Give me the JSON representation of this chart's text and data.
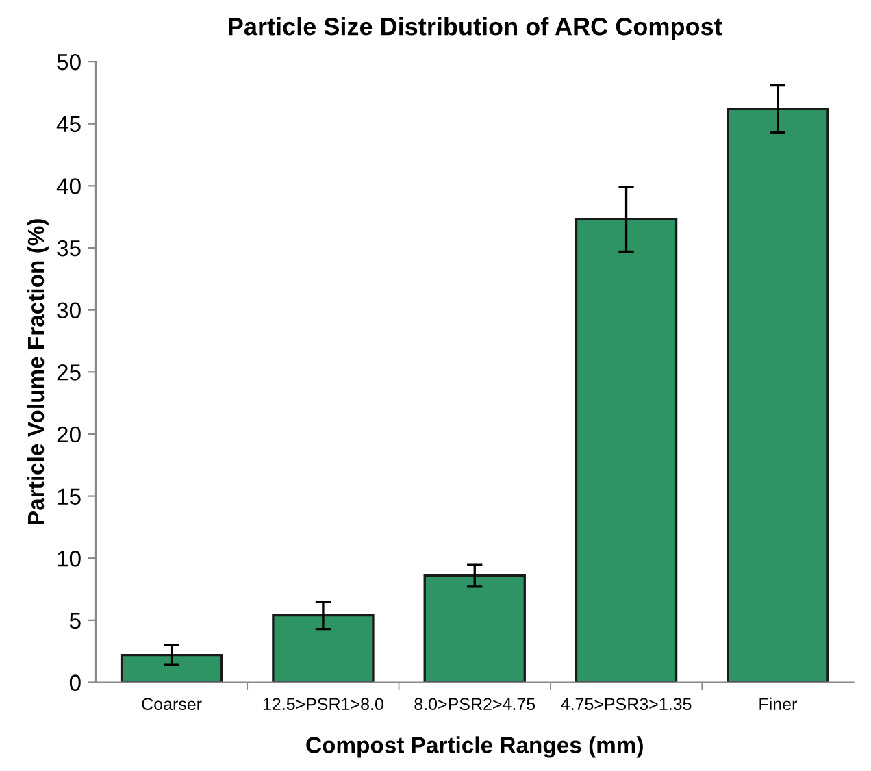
{
  "chart_data": {
    "type": "bar",
    "title": "Particle Size Distribution of ARC Compost",
    "xlabel": "Compost Particle Ranges (mm)",
    "ylabel": "Particle Volume Fraction (%)",
    "categories": [
      "Coarser",
      "12.5>PSR1>8.0",
      "8.0>PSR2>4.75",
      "4.75>PSR3>1.35",
      "Finer"
    ],
    "values": [
      2.2,
      5.4,
      8.6,
      37.3,
      46.2
    ],
    "errors": [
      0.8,
      1.1,
      0.9,
      2.6,
      1.9
    ],
    "color": "#2e9464",
    "ylim": [
      0,
      50
    ],
    "yticks": [
      0,
      5,
      10,
      15,
      20,
      25,
      30,
      35,
      40,
      45,
      50
    ],
    "grid": false
  }
}
